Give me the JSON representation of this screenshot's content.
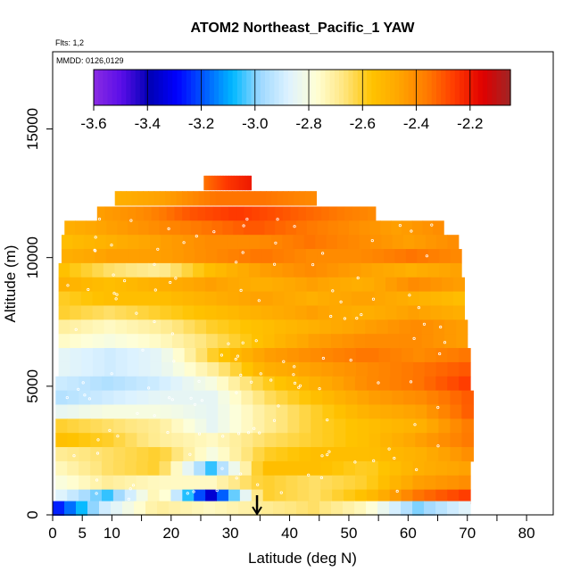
{
  "chart_data": {
    "type": "heatmap",
    "title": "ATOM2 Northeast_Pacific_1 YAW",
    "annotation_flights": "Flts: 1,2",
    "annotation_dates": "MMDD: 0126,0129",
    "xlabel": "Latitude (deg N)",
    "ylabel": "Altitude (m)",
    "xlim": [
      0,
      84.5
    ],
    "ylim": [
      0,
      18000
    ],
    "xticks": [
      0,
      5,
      10,
      20,
      30,
      40,
      50,
      60,
      70,
      80
    ],
    "yticks": [
      0,
      5000,
      10000,
      15000
    ],
    "colorbar": {
      "min": -3.6,
      "max": -2.05,
      "ticks": [
        -3.6,
        -3.4,
        -3.2,
        -3.0,
        -2.8,
        -2.6,
        -2.4,
        -2.2
      ],
      "colors": [
        "#8a2be2",
        "#5a0ee8",
        "#0000b4",
        "#0000ff",
        "#005cff",
        "#00b8ff",
        "#9ed8ff",
        "#ddf2ff",
        "#ffffd6",
        "#ffe680",
        "#ffc300",
        "#ffa500",
        "#ff7a00",
        "#ff3a00",
        "#e00000",
        "#a02525"
      ]
    },
    "marker": {
      "latitude": 34.5,
      "label": "arrow"
    },
    "altitude_bands": [
      {
        "alt": 12900,
        "lat_start": 25.5,
        "lat_end": 33.5,
        "values": [
          -2.35,
          -2.25,
          -2.2
        ]
      },
      {
        "alt": 12300,
        "lat_start": 10.5,
        "lat_end": 44.5,
        "values": [
          -2.5,
          -2.45,
          -2.35,
          -2.35,
          -2.4
        ]
      },
      {
        "alt": 11700,
        "lat_start": 7.5,
        "lat_end": 54.5,
        "values": [
          -2.45,
          -2.4,
          -2.3,
          -2.25,
          -2.3,
          -2.35,
          -2.4
        ]
      },
      {
        "alt": 11150,
        "lat_start": 2.0,
        "lat_end": 66.0,
        "values": [
          -2.5,
          -2.45,
          -2.4,
          -2.35,
          -2.3,
          -2.35,
          -2.4,
          -2.45,
          -2.4
        ]
      },
      {
        "alt": 10600,
        "lat_start": 1.5,
        "lat_end": 68.5,
        "values": [
          -2.55,
          -2.5,
          -2.45,
          -2.4,
          -2.4,
          -2.35,
          -2.4,
          -2.45,
          -2.4
        ]
      },
      {
        "alt": 10050,
        "lat_start": 1.5,
        "lat_end": 69.0,
        "values": [
          -2.5,
          -2.45,
          -2.45,
          -2.4,
          -2.35,
          -2.4,
          -2.4,
          -2.35,
          -2.4
        ]
      },
      {
        "alt": 9500,
        "lat_start": 1.0,
        "lat_end": 69.0,
        "values": [
          -2.55,
          -2.65,
          -2.7,
          -2.55,
          -2.45,
          -2.4,
          -2.45,
          -2.5,
          -2.45
        ]
      },
      {
        "alt": 8950,
        "lat_start": 1.0,
        "lat_end": 69.5,
        "values": [
          -2.5,
          -2.55,
          -2.5,
          -2.45,
          -2.5,
          -2.45,
          -2.5,
          -2.4,
          -2.45
        ]
      },
      {
        "alt": 8400,
        "lat_start": 1.0,
        "lat_end": 69.5,
        "values": [
          -2.6,
          -2.55,
          -2.55,
          -2.5,
          -2.45,
          -2.5,
          -2.45,
          -2.5,
          -2.55
        ]
      },
      {
        "alt": 7850,
        "lat_start": 1.0,
        "lat_end": 69.5,
        "values": [
          -2.6,
          -2.65,
          -2.6,
          -2.55,
          -2.5,
          -2.45,
          -2.5,
          -2.45,
          -2.5
        ]
      },
      {
        "alt": 7300,
        "lat_start": 1.0,
        "lat_end": 70.0,
        "values": [
          -2.7,
          -2.75,
          -2.7,
          -2.6,
          -2.55,
          -2.5,
          -2.45,
          -2.4,
          -2.45
        ]
      },
      {
        "alt": 6750,
        "lat_start": 1.0,
        "lat_end": 70.0,
        "values": [
          -2.75,
          -2.8,
          -2.75,
          -2.65,
          -2.55,
          -2.45,
          -2.4,
          -2.4,
          -2.45
        ]
      },
      {
        "alt": 6200,
        "lat_start": 1.0,
        "lat_end": 70.5,
        "values": [
          -2.85,
          -2.9,
          -2.85,
          -2.6,
          -2.45,
          -2.4,
          -2.35,
          -2.4,
          -2.35
        ]
      },
      {
        "alt": 5650,
        "lat_start": 1.0,
        "lat_end": 70.5,
        "values": [
          -2.85,
          -2.9,
          -2.85,
          -2.7,
          -2.5,
          -2.45,
          -2.4,
          -2.35,
          -2.3
        ]
      },
      {
        "alt": 5100,
        "lat_start": 0.5,
        "lat_end": 70.5,
        "values": [
          -2.9,
          -2.95,
          -2.9,
          -2.8,
          -2.6,
          -2.5,
          -2.4,
          -2.35,
          -2.25
        ]
      },
      {
        "alt": 4550,
        "lat_start": 0.5,
        "lat_end": 71.0,
        "values": [
          -2.95,
          -2.9,
          -2.85,
          -2.85,
          -2.65,
          -2.55,
          -2.45,
          -2.4,
          -2.3
        ]
      },
      {
        "alt": 4000,
        "lat_start": 0.5,
        "lat_end": 71.0,
        "values": [
          -2.85,
          -2.8,
          -2.8,
          -2.85,
          -2.7,
          -2.6,
          -2.5,
          -2.45,
          -2.3
        ]
      },
      {
        "alt": 3450,
        "lat_start": 0.5,
        "lat_end": 71.0,
        "values": [
          -2.6,
          -2.65,
          -2.7,
          -2.85,
          -2.7,
          -2.6,
          -2.55,
          -2.5,
          -2.35
        ]
      },
      {
        "alt": 2900,
        "lat_start": 0.5,
        "lat_end": 71.0,
        "values": [
          -2.55,
          -2.6,
          -2.7,
          -2.75,
          -2.65,
          -2.6,
          -2.55,
          -2.45,
          -2.35
        ]
      },
      {
        "alt": 2350,
        "lat_start": 0.5,
        "lat_end": 71.0,
        "values": [
          -2.7,
          -2.65,
          -2.6,
          -2.8,
          -2.6,
          -2.55,
          -2.55,
          -2.5,
          -2.4
        ]
      },
      {
        "alt": 1800,
        "lat_start": 0.5,
        "lat_end": 70.5,
        "values": [
          -2.75,
          -2.65,
          -2.6,
          -3.05,
          -2.55,
          -2.55,
          -2.6,
          -2.5,
          -2.45
        ]
      },
      {
        "alt": 1250,
        "lat_start": 0.5,
        "lat_end": 70.5,
        "values": [
          -2.8,
          -2.7,
          -2.75,
          -2.75,
          -2.6,
          -2.65,
          -2.6,
          -2.45,
          -2.4
        ]
      },
      {
        "alt": 700,
        "lat_start": 0.5,
        "lat_end": 70.5,
        "values": [
          -2.85,
          -3.05,
          -2.7,
          -3.35,
          -2.6,
          -2.65,
          -2.55,
          -2.35,
          -2.25
        ]
      },
      {
        "alt": 250,
        "lat_start": 0.0,
        "lat_end": 70.5,
        "values": [
          -3.3,
          -2.9,
          -2.7,
          -2.75,
          -2.7,
          -2.65,
          -2.75,
          -3.0,
          -2.85
        ]
      }
    ]
  }
}
